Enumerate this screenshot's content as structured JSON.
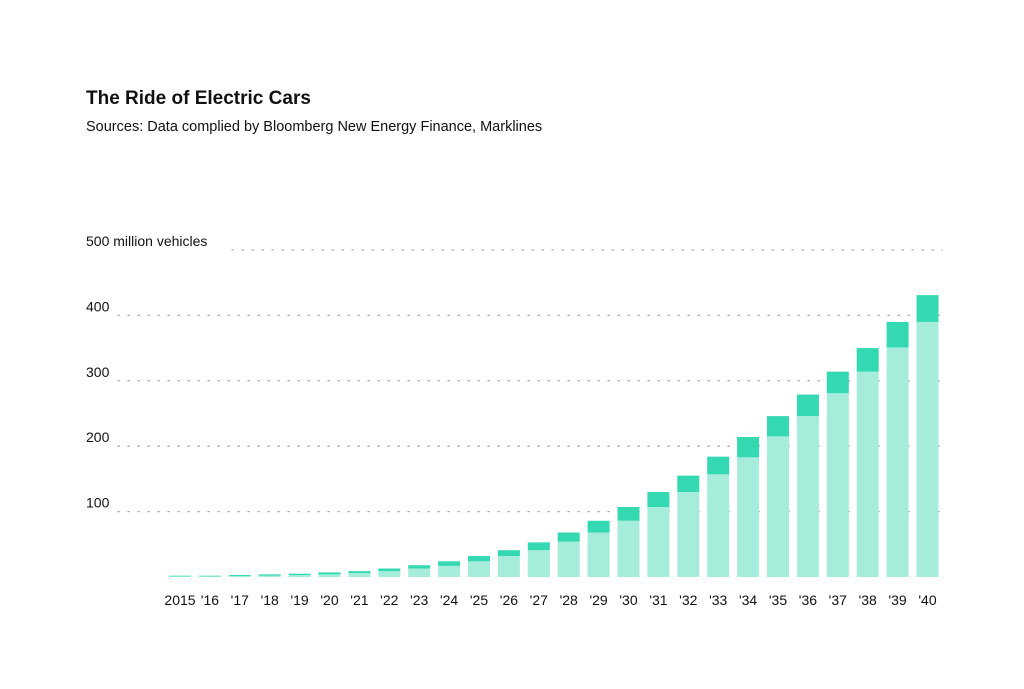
{
  "colors": {
    "bar_light": "#a5ecdb",
    "bar_dark": "#34d9b2",
    "grid": "#a9a9a9",
    "text": "#111111"
  },
  "chart_data": {
    "type": "bar",
    "stacked": true,
    "title": "The Ride of Electric Cars",
    "subtitle": "Sources: Data complied by Bloomberg New Energy Finance, Marklines",
    "ylabel": "",
    "ylim": [
      0,
      500
    ],
    "yticks": [
      100,
      200,
      300,
      400,
      500
    ],
    "ytick_labels": [
      "100",
      "200",
      "300",
      "400",
      "500 million vehicles"
    ],
    "grid": "horizontal-dotted",
    "categories": [
      "2015",
      "'16",
      "'17",
      "'18",
      "'19",
      "'20",
      "'21",
      "'22",
      "'23",
      "'24",
      "'25",
      "'26",
      "'27",
      "'28",
      "'29",
      "'30",
      "'31",
      "'32",
      "'33",
      "'34",
      "'35",
      "'36",
      "'37",
      "'38",
      "'39",
      "'40"
    ],
    "series": [
      {
        "values": [
          1,
          1,
          1.5,
          2,
          3,
          4,
          6,
          9,
          13,
          17,
          24,
          32,
          41,
          54,
          68,
          86,
          107,
          130,
          157,
          183,
          215,
          246,
          281,
          314,
          351,
          390
        ]
      },
      {
        "values": [
          1,
          1,
          1.5,
          2,
          2,
          3,
          3,
          4,
          5,
          7,
          8,
          9,
          12,
          14,
          18,
          21,
          23,
          25,
          27,
          31,
          31,
          33,
          33,
          36,
          39,
          41
        ]
      }
    ],
    "totals": [
      2,
      2,
      3,
      4,
      5,
      7,
      9,
      13,
      18,
      24,
      32,
      41,
      53,
      68,
      86,
      107,
      130,
      155,
      184,
      214,
      246,
      279,
      314,
      350,
      390,
      431
    ]
  }
}
